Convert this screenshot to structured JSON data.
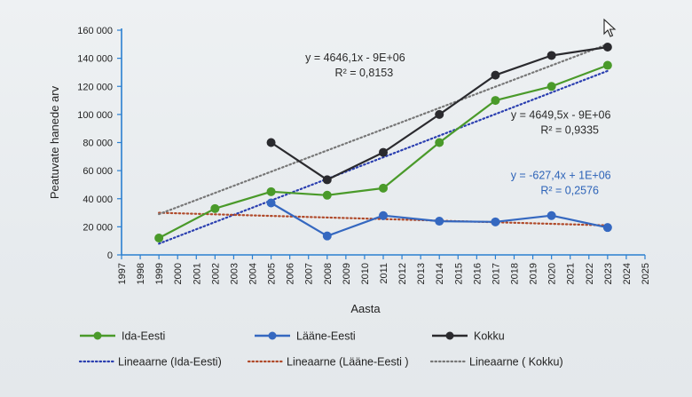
{
  "chart_data": {
    "type": "line",
    "xlabel": "Aasta",
    "ylabel": "Peatuvate hanede arv",
    "ylim": [
      0,
      160000
    ],
    "yticks": [
      0,
      20000,
      40000,
      60000,
      80000,
      100000,
      120000,
      140000,
      160000
    ],
    "ytick_labels": [
      "0",
      "20 000",
      "40 000",
      "60 000",
      "80 000",
      "100 000",
      "120 000",
      "140 000",
      "160 000"
    ],
    "xlim": [
      1997,
      2025
    ],
    "xticks": [
      "1997",
      "1998",
      "1999",
      "2000",
      "2001",
      "2002",
      "2003",
      "2004",
      "2005",
      "2006",
      "2007",
      "2008",
      "2009",
      "2010",
      "2011",
      "2012",
      "2013",
      "2014",
      "2015",
      "2016",
      "2017",
      "2018",
      "2019",
      "2020",
      "2021",
      "2022",
      "2023",
      "2024",
      "2025"
    ],
    "grid": false,
    "legend_position": "bottom",
    "series": [
      {
        "name": "Ida-Eesti",
        "color": "#4a9a2a",
        "points": [
          {
            "x": 1999,
            "y": 12000
          },
          {
            "x": 2002,
            "y": 33000
          },
          {
            "x": 2005,
            "y": 45000
          },
          {
            "x": 2008,
            "y": 42500
          },
          {
            "x": 2011,
            "y": 47500
          },
          {
            "x": 2014,
            "y": 80000
          },
          {
            "x": 2017,
            "y": 110000
          },
          {
            "x": 2020,
            "y": 120000
          },
          {
            "x": 2023,
            "y": 135000
          }
        ]
      },
      {
        "name": "Lääne-Eesti",
        "color": "#3568c0",
        "points": [
          {
            "x": 2005,
            "y": 37000
          },
          {
            "x": 2008,
            "y": 13500
          },
          {
            "x": 2011,
            "y": 28000
          },
          {
            "x": 2014,
            "y": 24000
          },
          {
            "x": 2017,
            "y": 23500
          },
          {
            "x": 2020,
            "y": 28000
          },
          {
            "x": 2023,
            "y": 19500
          }
        ]
      },
      {
        "name": "Kokku",
        "color": "#2a2a2e",
        "points": [
          {
            "x": 2005,
            "y": 80000
          },
          {
            "x": 2008,
            "y": 53500
          },
          {
            "x": 2011,
            "y": 73000
          },
          {
            "x": 2014,
            "y": 100000
          },
          {
            "x": 2017,
            "y": 128000
          },
          {
            "x": 2020,
            "y": 142000
          },
          {
            "x": 2023,
            "y": 148000
          }
        ]
      }
    ],
    "trendlines": [
      {
        "name": "Lineaarne (Ida-Eesti)",
        "color": "#2b3fb0",
        "style": "dotted",
        "x": [
          1999,
          2023
        ],
        "y": [
          8000,
          131000
        ]
      },
      {
        "name": "Lineaarne (Lääne-Eesti )",
        "color": "#b04a2a",
        "style": "dotted",
        "x": [
          1999,
          2023
        ],
        "y": [
          30000,
          21000
        ]
      },
      {
        "name": "Lineaarne ( Kokku)",
        "color": "#777777",
        "style": "dotted",
        "x": [
          1999,
          2023
        ],
        "y": [
          29000,
          150000
        ]
      }
    ],
    "annotations": [
      {
        "lines": [
          "y = 4646,1x - 9E+06",
          "R² = 0,8153"
        ],
        "color": "#2a2a2a",
        "anchor_year": 2009.5,
        "anchor_value": 138000
      },
      {
        "lines": [
          "y = 4649,5x - 9E+06",
          "R² = 0,9335"
        ],
        "color": "#2a2a2a",
        "anchor_year": 2020.5,
        "anchor_value": 97000
      },
      {
        "lines": [
          "y = -627,4x + 1E+06",
          "R² = 0,2576"
        ],
        "color": "#2d63b8",
        "anchor_year": 2020.5,
        "anchor_value": 54000
      }
    ]
  },
  "legend": {
    "row1": [
      "Ida-Eesti",
      "Lääne-Eesti",
      "Kokku"
    ],
    "row2": [
      "Lineaarne (Ida-Eesti)",
      "Lineaarne (Lääne-Eesti )",
      "Lineaarne ( Kokku)"
    ]
  }
}
